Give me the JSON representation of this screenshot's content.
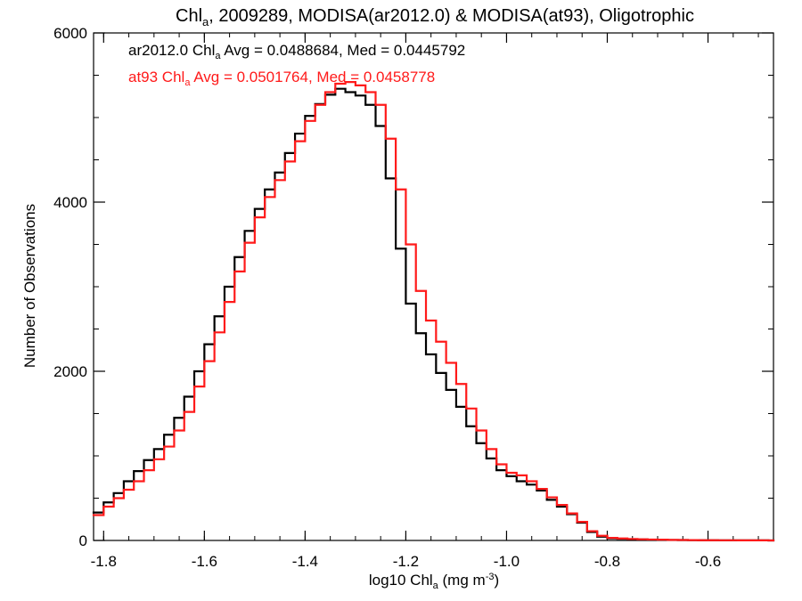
{
  "chart_data": {
    "type": "line",
    "title": {
      "parts": [
        "Chl",
        "a",
        ", 2009289, MODISA(ar2012.0) & MODISA(at93), Oligotrophic"
      ]
    },
    "xlabel": {
      "parts": [
        "log10 Chl",
        "a",
        " (mg m",
        "-3",
        ")"
      ]
    },
    "ylabel": "Number of Observations",
    "xlim": [
      -1.82,
      -0.47
    ],
    "ylim": [
      0,
      6000
    ],
    "x_ticks": [
      {
        "value": -1.8,
        "label": "-1.8"
      },
      {
        "value": -1.6,
        "label": "-1.6"
      },
      {
        "value": -1.4,
        "label": "-1.4"
      },
      {
        "value": -1.2,
        "label": "-1.2"
      },
      {
        "value": -1.0,
        "label": "-1.0"
      },
      {
        "value": -0.8,
        "label": "-0.8"
      },
      {
        "value": -0.6,
        "label": "-0.6"
      }
    ],
    "x_minor_step": 0.05,
    "y_ticks": [
      {
        "value": 0,
        "label": "0"
      },
      {
        "value": 2000,
        "label": "2000"
      },
      {
        "value": 4000,
        "label": "4000"
      },
      {
        "value": 6000,
        "label": "6000"
      }
    ],
    "y_minor_step": 500,
    "grid": false,
    "legend_position": "top-left",
    "series": [
      {
        "name": "ar2012.0",
        "color": "#000000",
        "legend": {
          "parts": [
            "ar2012.0 Chl",
            "a",
            " Avg = 0.0488684, Med = 0.0445792"
          ]
        },
        "x": [
          -1.82,
          -1.8,
          -1.78,
          -1.76,
          -1.74,
          -1.72,
          -1.7,
          -1.68,
          -1.66,
          -1.64,
          -1.62,
          -1.6,
          -1.58,
          -1.56,
          -1.54,
          -1.52,
          -1.5,
          -1.48,
          -1.46,
          -1.44,
          -1.42,
          -1.4,
          -1.38,
          -1.36,
          -1.34,
          -1.32,
          -1.3,
          -1.28,
          -1.26,
          -1.24,
          -1.22,
          -1.2,
          -1.18,
          -1.16,
          -1.14,
          -1.12,
          -1.1,
          -1.08,
          -1.06,
          -1.04,
          -1.02,
          -1.0,
          -0.98,
          -0.96,
          -0.94,
          -0.92,
          -0.9,
          -0.88,
          -0.86,
          -0.84,
          -0.82,
          -0.8,
          -0.78,
          -0.76,
          -0.74,
          -0.72,
          -0.7,
          -0.68,
          -0.66,
          -0.64,
          -0.62,
          -0.6,
          -0.58,
          -0.56,
          -0.54,
          -0.52,
          -0.5,
          -0.48
        ],
        "values": [
          330,
          450,
          560,
          700,
          820,
          950,
          1080,
          1250,
          1450,
          1700,
          2000,
          2320,
          2650,
          3000,
          3350,
          3660,
          3920,
          4150,
          4350,
          4580,
          4810,
          5020,
          5160,
          5270,
          5340,
          5300,
          5260,
          5150,
          4900,
          4280,
          3450,
          2800,
          2450,
          2200,
          1980,
          1780,
          1580,
          1350,
          1150,
          970,
          830,
          760,
          700,
          660,
          590,
          480,
          400,
          310,
          210,
          100,
          45,
          25,
          20,
          15,
          12,
          10,
          8,
          6,
          5,
          4,
          3,
          3,
          2,
          2,
          1,
          1,
          1,
          0
        ]
      },
      {
        "name": "at93",
        "color": "#ff1a1a",
        "legend": {
          "parts": [
            "at93 Chl",
            "a",
            " Avg = 0.0501764, Med = 0.0458778"
          ]
        },
        "x": [
          -1.82,
          -1.8,
          -1.78,
          -1.76,
          -1.74,
          -1.72,
          -1.7,
          -1.68,
          -1.66,
          -1.64,
          -1.62,
          -1.6,
          -1.58,
          -1.56,
          -1.54,
          -1.52,
          -1.5,
          -1.48,
          -1.46,
          -1.44,
          -1.42,
          -1.4,
          -1.38,
          -1.36,
          -1.34,
          -1.32,
          -1.3,
          -1.28,
          -1.26,
          -1.24,
          -1.22,
          -1.2,
          -1.18,
          -1.16,
          -1.14,
          -1.12,
          -1.1,
          -1.08,
          -1.06,
          -1.04,
          -1.02,
          -1.0,
          -0.98,
          -0.96,
          -0.94,
          -0.92,
          -0.9,
          -0.88,
          -0.86,
          -0.84,
          -0.82,
          -0.8,
          -0.78,
          -0.76,
          -0.74,
          -0.72,
          -0.7,
          -0.68,
          -0.66,
          -0.64,
          -0.62,
          -0.6,
          -0.58,
          -0.56,
          -0.54,
          -0.52,
          -0.5,
          -0.48
        ],
        "values": [
          300,
          400,
          500,
          600,
          700,
          830,
          960,
          1110,
          1300,
          1520,
          1820,
          2120,
          2460,
          2820,
          3180,
          3520,
          3820,
          4060,
          4260,
          4480,
          4720,
          4960,
          5150,
          5300,
          5400,
          5420,
          5380,
          5300,
          5150,
          4750,
          4150,
          3500,
          2950,
          2600,
          2350,
          2100,
          1850,
          1560,
          1300,
          1080,
          900,
          800,
          770,
          700,
          610,
          510,
          420,
          320,
          220,
          110,
          55,
          30,
          24,
          18,
          14,
          11,
          9,
          7,
          5,
          4,
          3,
          3,
          2,
          2,
          1,
          1,
          1,
          0
        ]
      }
    ]
  }
}
